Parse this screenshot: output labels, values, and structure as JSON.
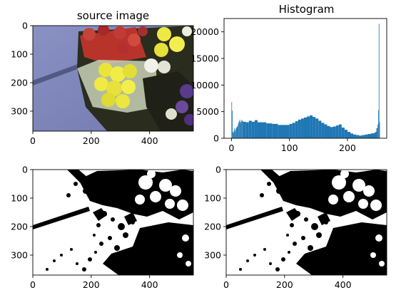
{
  "chart_data": [
    {
      "type": "image",
      "title": "source image",
      "xticks": [
        "0",
        "200",
        "400"
      ],
      "yticks": [
        "0",
        "100",
        "200",
        "300"
      ],
      "xlim": [
        0,
        550
      ],
      "ylim": [
        370,
        0
      ]
    },
    {
      "type": "bar",
      "title": "Histogram",
      "xticks": [
        "0",
        "100",
        "200"
      ],
      "yticks": [
        "0",
        "5000",
        "10000",
        "15000",
        "20000"
      ],
      "xlim": [
        -12.75,
        267.75
      ],
      "ylim": [
        0,
        22500
      ],
      "series_color": "#1f77b4",
      "bins": [
        0,
        1,
        2,
        3,
        4,
        5,
        6,
        7,
        8,
        9,
        10,
        11,
        12,
        13,
        14,
        15,
        16,
        17,
        18,
        19,
        20,
        25,
        30,
        35,
        40,
        45,
        50,
        60,
        70,
        80,
        90,
        100,
        105,
        110,
        115,
        120,
        125,
        130,
        135,
        140,
        145,
        150,
        155,
        160,
        165,
        170,
        175,
        180,
        185,
        190,
        195,
        200,
        205,
        210,
        215,
        220,
        225,
        230,
        235,
        240,
        245,
        248,
        250,
        252,
        253,
        254,
        255
      ],
      "counts": [
        6800,
        5200,
        1200,
        1000,
        1500,
        1900,
        1300,
        1700,
        2000,
        2100,
        2200,
        2600,
        3000,
        3200,
        3500,
        2900,
        3100,
        3300,
        3400,
        3200,
        3100,
        3000,
        3300,
        3100,
        3400,
        3000,
        3000,
        2800,
        2700,
        2500,
        2500,
        2700,
        2900,
        3200,
        3500,
        3700,
        3900,
        4100,
        4300,
        4000,
        3700,
        3300,
        2900,
        2600,
        2300,
        2100,
        2200,
        2400,
        2600,
        2000,
        1600,
        1200,
        900,
        700,
        600,
        500,
        600,
        700,
        800,
        900,
        1000,
        1200,
        1900,
        2600,
        5300,
        21500,
        3000
      ]
    },
    {
      "type": "image",
      "title": "",
      "xticks": [
        "0",
        "200",
        "400"
      ],
      "yticks": [
        "0",
        "100",
        "200",
        "300"
      ],
      "xlim": [
        0,
        550
      ],
      "ylim": [
        370,
        0
      ]
    },
    {
      "type": "image",
      "title": "",
      "xticks": [
        "0",
        "200",
        "400"
      ],
      "yticks": [
        "0",
        "100",
        "200",
        "300"
      ],
      "xlim": [
        0,
        550
      ],
      "ylim": [
        370,
        0
      ]
    }
  ]
}
